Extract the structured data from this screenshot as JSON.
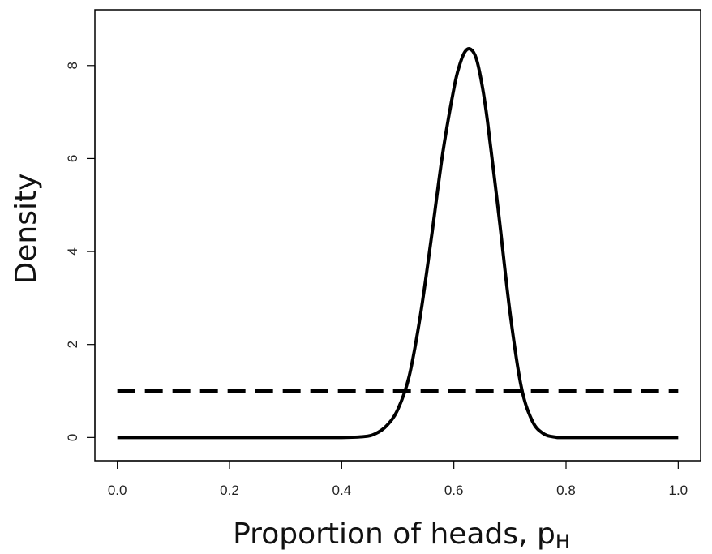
{
  "chart_data": {
    "type": "line",
    "title": "",
    "xlabel": "Proportion of heads, p",
    "xlabel_subscript": "H",
    "ylabel": "Density",
    "xlim": [
      -0.04,
      1.04
    ],
    "ylim": [
      -0.5,
      9.2
    ],
    "x_ticks": [
      0.0,
      0.2,
      0.4,
      0.6,
      0.8,
      1.0
    ],
    "x_tick_labels": [
      "0.0",
      "0.2",
      "0.4",
      "0.6",
      "0.8",
      "1.0"
    ],
    "y_ticks": [
      0,
      2,
      4,
      6,
      8
    ],
    "y_tick_labels": [
      "0",
      "2",
      "4",
      "6",
      "8"
    ],
    "grid": false,
    "legend": "none",
    "series": [
      {
        "style": "solid",
        "color": "#000000",
        "x": [
          0.0,
          0.1,
          0.2,
          0.3,
          0.4,
          0.44,
          0.46,
          0.48,
          0.5,
          0.52,
          0.54,
          0.56,
          0.58,
          0.6,
          0.61,
          0.62,
          0.63,
          0.64,
          0.65,
          0.66,
          0.68,
          0.7,
          0.72,
          0.74,
          0.76,
          0.78,
          0.8,
          0.9,
          1.0
        ],
        "y": [
          0,
          0,
          0,
          0,
          0,
          0.02,
          0.08,
          0.25,
          0.6,
          1.3,
          2.6,
          4.3,
          6.1,
          7.5,
          8.0,
          8.3,
          8.35,
          8.15,
          7.6,
          6.8,
          4.8,
          2.7,
          1.1,
          0.35,
          0.08,
          0.01,
          0,
          0,
          0
        ]
      },
      {
        "style": "dashed",
        "color": "#000000",
        "x": [
          0.0,
          1.0
        ],
        "y": [
          1,
          1
        ]
      }
    ]
  }
}
